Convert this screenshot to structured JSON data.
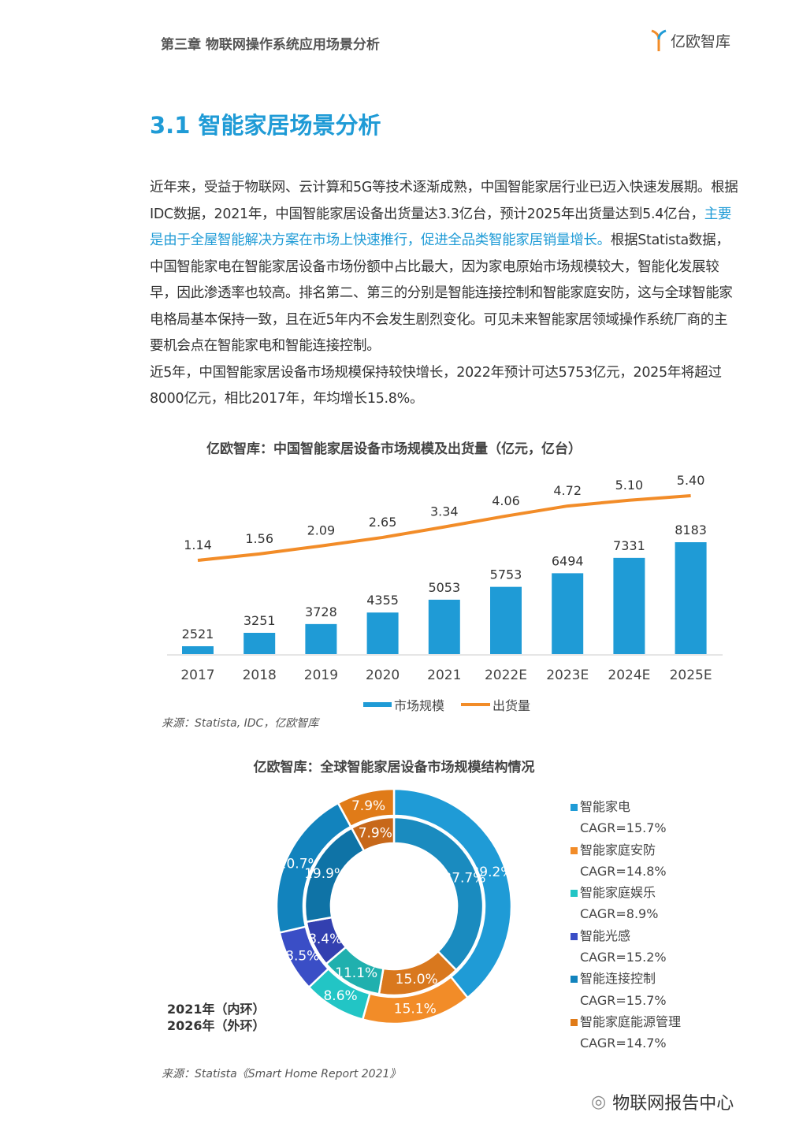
{
  "header": {
    "chapter": "第三章 物联网操作系统应用场景分析",
    "logo_text": "亿欧智库"
  },
  "section_title": "3.1 智能家居场景分析",
  "body": {
    "p1_a": "近年来，受益于物联网、云计算和5G等技术逐渐成熟，中国智能家居行业已迈入快速发展期。根据IDC数据，2021年，中国智能家居设备出货量达3.3亿台，预计2025年出货量达到5.4亿台，",
    "p1_highlight": "主要是由于全屋智能解决方案在市场上快速推行，促进全品类智能家居销量增长。",
    "p1_b": "根据Statista数据，中国智能家电在智能家居设备市场份额中占比最大，因为家电原始市场规模较大，智能化发展较早，因此渗透率也较高。排名第二、第三的分别是智能连接控制和智能家庭安防，这与全球智能家电格局基本保持一致，且在近5年内不会发生剧烈变化。可见未来智能家居领域操作系统厂商的主要机会点在智能家电和智能连接控制。",
    "p2": "近5年，中国智能家居设备市场规模保持较快增长，2022年预计可达5753亿元，2025年将超过8000亿元，相比2017年，年均增长15.8%。"
  },
  "chart_data": [
    {
      "type": "bar",
      "title": "亿欧智库：中国智能家居设备市场规模及出货量（亿元，亿台）",
      "categories": [
        "2017",
        "2018",
        "2019",
        "2020",
        "2021",
        "2022E",
        "2023E",
        "2024E",
        "2025E"
      ],
      "series": [
        {
          "name": "市场规模",
          "type": "bar",
          "color": "#1f9bd6",
          "values": [
            2521,
            3251,
            3728,
            4355,
            5053,
            5753,
            6494,
            7331,
            8183
          ]
        },
        {
          "name": "出货量",
          "type": "line",
          "color": "#f28c28",
          "values": [
            1.14,
            1.56,
            2.09,
            2.65,
            3.34,
            4.06,
            4.72,
            5.1,
            5.4
          ]
        }
      ],
      "legend": "bottom",
      "source": "来源：Statista, IDC，亿欧智库"
    },
    {
      "type": "pie",
      "subtype": "double-donut",
      "title": "亿欧智库：全球智能家居设备市场规模结构情况",
      "categories": [
        "智能家电",
        "智能家庭安防",
        "智能家庭娱乐",
        "智能光感",
        "智能连接控制",
        "智能家庭能源管理"
      ],
      "cagr": [
        "CAGR=15.7%",
        "CAGR=14.8%",
        "CAGR=8.9%",
        "CAGR=15.2%",
        "CAGR=15.7%",
        "CAGR=14.7%"
      ],
      "colors": [
        "#1f9bd6",
        "#f28c28",
        "#22c5c5",
        "#3a4ec6",
        "#1283bd",
        "#e07b18"
      ],
      "inner_colors": [
        "#1a8bbf",
        "#d9781e",
        "#20b0ae",
        "#3340b0",
        "#0f73a6",
        "#c7681a"
      ],
      "series": [
        {
          "name": "2021年（内环）",
          "values": [
            37.7,
            15.0,
            11.1,
            8.4,
            19.9,
            7.9
          ],
          "labels": [
            "37.7%",
            "15.0%",
            "11.1%",
            "8.4%",
            "19.9%",
            "7.9%"
          ]
        },
        {
          "name": "2026年（外环）",
          "values": [
            39.2,
            15.1,
            8.6,
            8.5,
            20.7,
            7.9
          ],
          "labels": [
            "39.2%",
            "15.1%",
            "8.6%",
            "8.5%",
            "20.7%",
            "7.9%"
          ]
        }
      ],
      "source": "来源：Statista《Smart  Home Report 2021》"
    }
  ],
  "watermark": "物联网报告中心"
}
